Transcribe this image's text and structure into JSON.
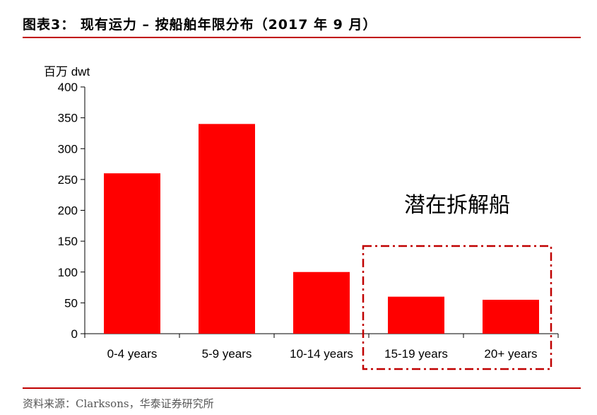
{
  "header": {
    "title": "图表3：  现有运力 – 按船舶年限分布（2017 年 9 月）"
  },
  "footer": {
    "source": "资料来源：Clarksons，华泰证券研究所"
  },
  "colors": {
    "accent": "#c00000",
    "bar": "#ff0000",
    "annotation_box": "#c00000"
  },
  "chart_data": {
    "type": "bar",
    "title": "",
    "unit_label": "百万 dwt",
    "xlabel": "",
    "ylabel": "",
    "categories": [
      "0-4 years",
      "5-9 years",
      "10-14 years",
      "15-19 years",
      "20+ years"
    ],
    "values": [
      260,
      340,
      100,
      60,
      55
    ],
    "ylim": [
      0,
      400
    ],
    "yticks": [
      "0",
      "50",
      "100",
      "150",
      "200",
      "250",
      "300",
      "350",
      "400"
    ],
    "grid": false,
    "legend": "none",
    "annotation": {
      "text": "潜在拆解船",
      "categories": [
        "15-19 years",
        "20+ years"
      ]
    }
  }
}
